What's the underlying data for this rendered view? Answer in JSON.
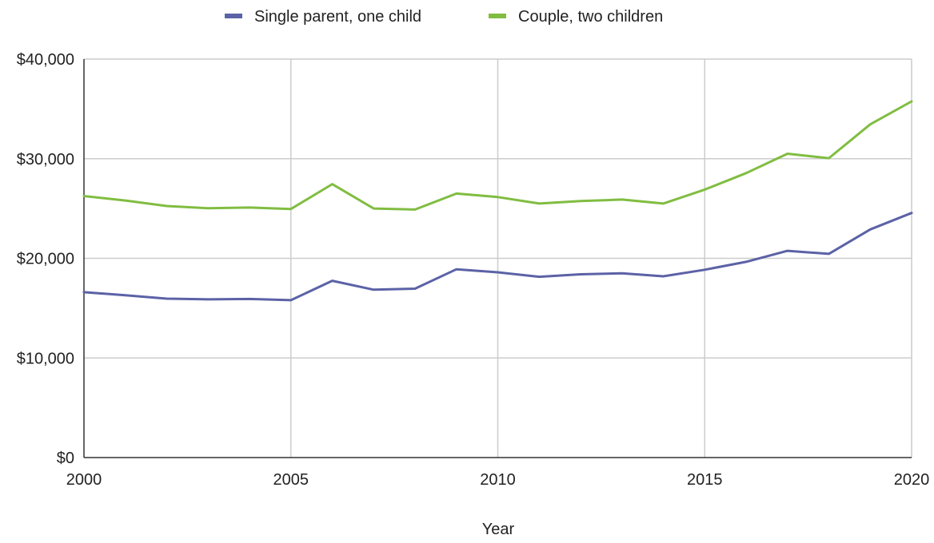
{
  "chart_data": {
    "type": "line",
    "title": "",
    "xlabel": "Year",
    "ylabel": "",
    "xlim": [
      2000,
      2020
    ],
    "ylim": [
      0,
      40000
    ],
    "grid": true,
    "legend_position": "top",
    "x_ticks": [
      2000,
      2005,
      2010,
      2015,
      2020
    ],
    "x_tick_labels": [
      "2000",
      "2005",
      "2010",
      "2015",
      "2020"
    ],
    "y_ticks": [
      0,
      10000,
      20000,
      30000,
      40000
    ],
    "y_tick_labels": [
      "$0",
      "$10,000",
      "$20,000",
      "$30,000",
      "$40,000"
    ],
    "x": [
      2000,
      2001,
      2002,
      2003,
      2004,
      2005,
      2006,
      2007,
      2008,
      2009,
      2010,
      2011,
      2012,
      2013,
      2014,
      2015,
      2016,
      2017,
      2018,
      2019,
      2020
    ],
    "series": [
      {
        "name": "Single parent, one child",
        "color": "#5b62a6",
        "values": [
          16600,
          16300,
          15950,
          15880,
          15920,
          15800,
          17750,
          16850,
          16950,
          18900,
          18600,
          18150,
          18400,
          18500,
          18200,
          18850,
          19650,
          20750,
          20450,
          22900,
          24550
        ]
      },
      {
        "name": "Couple, two children",
        "color": "#80bd41",
        "values": [
          26250,
          25800,
          25250,
          25030,
          25100,
          24950,
          27450,
          25000,
          24900,
          26500,
          26150,
          25500,
          25750,
          25900,
          25500,
          26900,
          28550,
          30500,
          30050,
          33450,
          35750
        ]
      }
    ]
  }
}
